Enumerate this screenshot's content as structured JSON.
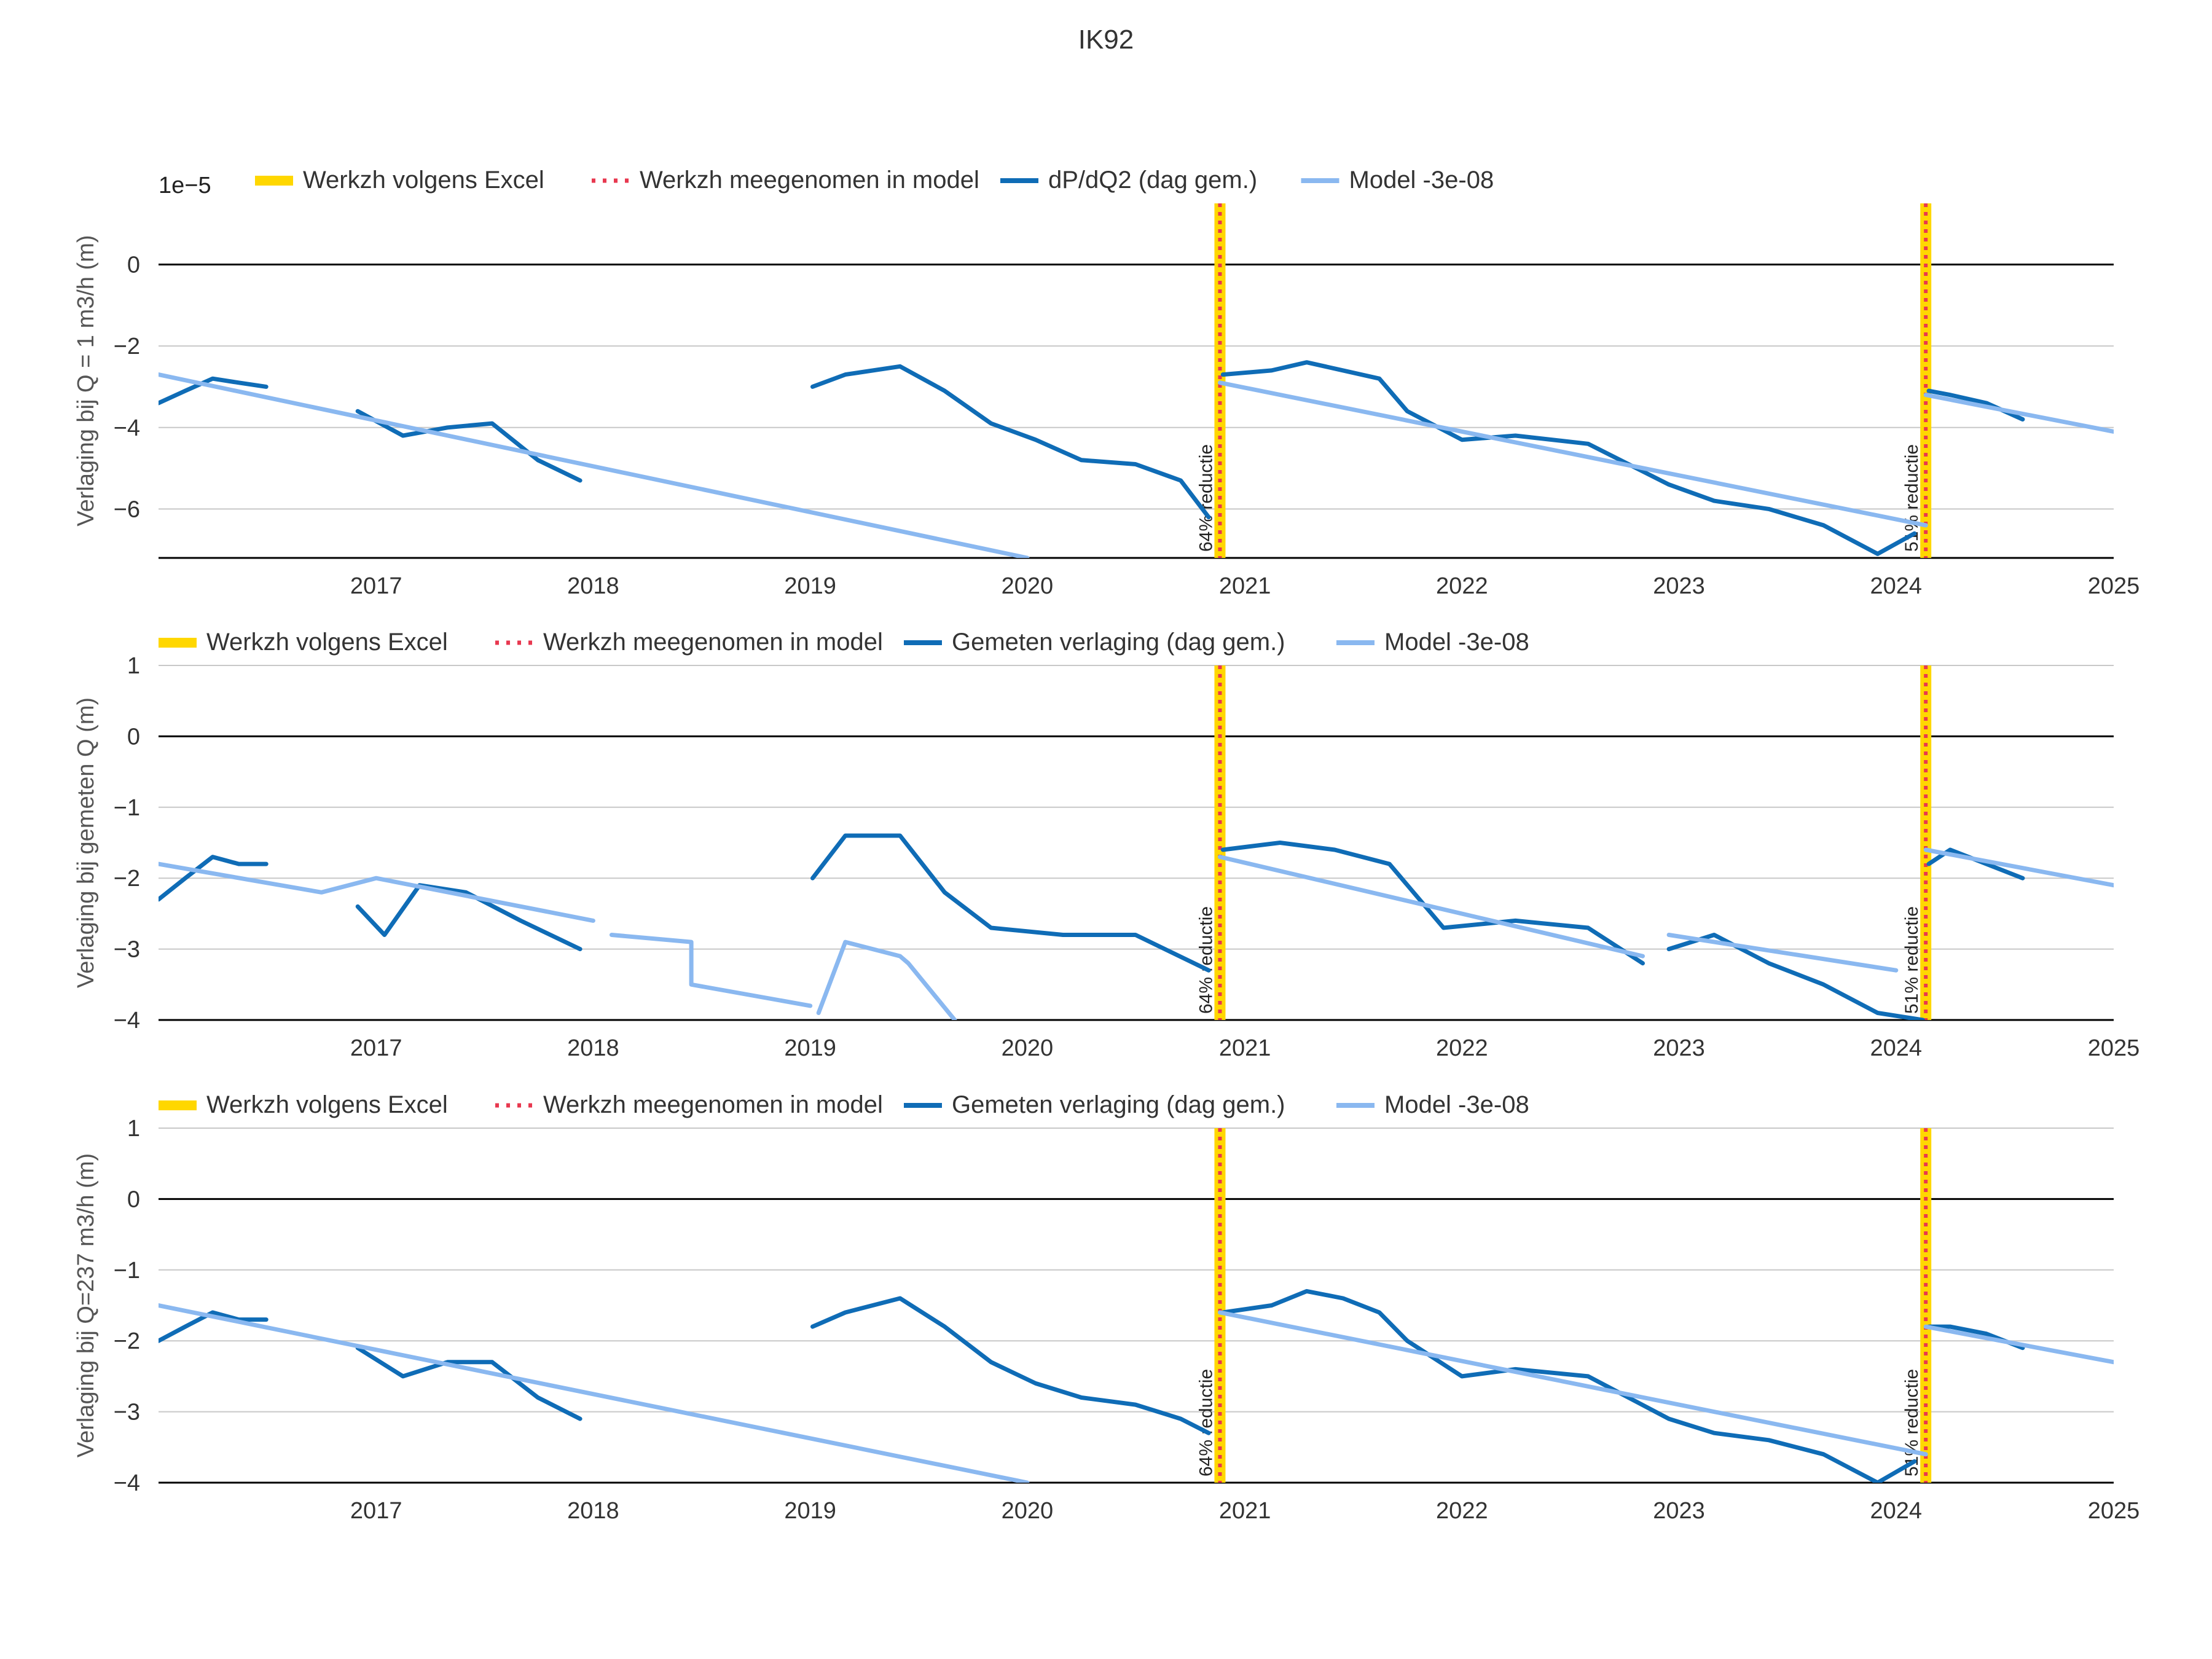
{
  "title": "IK92",
  "colors": {
    "excel": "#FFD700",
    "model_marker": "#E8384F",
    "measured": "#0F6CB6",
    "model": "#8AB8F0",
    "grid": "#C8C8C8",
    "zero": "#000000"
  },
  "chart_data": [
    {
      "type": "line",
      "ylabel": "Verlaging bij Q = 1 m3/h (m)",
      "exponent_label": "1e−5",
      "ylim": [
        -7.2,
        1.5
      ],
      "xlim": [
        "2016-01-01",
        "2025-01-01"
      ],
      "yticks": [
        0,
        -2,
        -4,
        -6
      ],
      "ytick_labels": [
        "0",
        "−2",
        "−4",
        "−6"
      ],
      "xtick_labels": [
        "2017",
        "2018",
        "2019",
        "2020",
        "2021",
        "2022",
        "2023",
        "2024",
        "2025"
      ],
      "grid": true,
      "legend": [
        "Werkzh volgens Excel",
        "Werkzh meegenomen in model",
        "dP/dQ2 (dag gem.)",
        "Model -3e-08"
      ],
      "legend_position": "top",
      "events": [
        {
          "date": "2020-11-20",
          "label": "64% reductie"
        },
        {
          "date": "2024-02-20",
          "label": "51% reductie"
        }
      ],
      "series": [
        {
          "name": "dP/dQ2 (dag gem.)",
          "style": "measured",
          "segments": [
            {
              "x": [
                "2016-01-01",
                "2016-02-15",
                "2016-04-01",
                "2016-05-15",
                "2016-06-30"
              ],
              "y": [
                -3.4,
                -3.1,
                -2.8,
                -2.9,
                -3.0
              ]
            },
            {
              "x": [
                "2016-12-01",
                "2017-02-15",
                "2017-05-01",
                "2017-07-15",
                "2017-09-30",
                "2017-12-10"
              ],
              "y": [
                -3.6,
                -4.2,
                -4.0,
                -3.9,
                -4.8,
                -5.3
              ]
            },
            {
              "x": [
                "2019-01-05",
                "2019-03-01",
                "2019-06-01",
                "2019-08-15",
                "2019-11-01",
                "2020-01-15",
                "2020-04-01",
                "2020-07-01",
                "2020-09-15",
                "2020-11-01"
              ],
              "y": [
                -3.0,
                -2.7,
                -2.5,
                -3.1,
                -3.9,
                -4.3,
                -4.8,
                -4.9,
                -5.3,
                -6.2
              ]
            },
            {
              "x": [
                "2020-11-25",
                "2021-02-15",
                "2021-04-15",
                "2021-06-15",
                "2021-08-15",
                "2021-10-01",
                "2022-01-01",
                "2022-04-01",
                "2022-08-01",
                "2022-12-15",
                "2023-03-01",
                "2023-06-01",
                "2023-09-01",
                "2023-12-01",
                "2024-02-01"
              ],
              "y": [
                -2.7,
                -2.6,
                -2.4,
                -2.6,
                -2.8,
                -3.6,
                -4.3,
                -4.2,
                -4.4,
                -5.4,
                -5.8,
                -6.0,
                -6.4,
                -7.1,
                -6.6
              ]
            },
            {
              "x": [
                "2024-02-25",
                "2024-04-01",
                "2024-06-01",
                "2024-08-01"
              ],
              "y": [
                -3.1,
                -3.2,
                -3.4,
                -3.8
              ]
            }
          ]
        },
        {
          "name": "Model -3e-08",
          "style": "model",
          "segments": [
            {
              "x": [
                "2016-01-01",
                "2020-01-01"
              ],
              "y": [
                -2.7,
                -7.2
              ]
            },
            {
              "x": [
                "2020-11-20",
                "2024-02-20"
              ],
              "y": [
                -2.9,
                -6.4
              ]
            },
            {
              "x": [
                "2024-02-20",
                "2025-01-01"
              ],
              "y": [
                -3.2,
                -4.1
              ]
            }
          ]
        }
      ]
    },
    {
      "type": "line",
      "ylabel": "Verlaging bij gemeten Q (m)",
      "ylim": [
        -4,
        1
      ],
      "xlim": [
        "2016-01-01",
        "2025-01-01"
      ],
      "yticks": [
        1,
        0,
        -1,
        -2,
        -3,
        -4
      ],
      "ytick_labels": [
        "1",
        "0",
        "−1",
        "−2",
        "−3",
        "−4"
      ],
      "xtick_labels": [
        "2017",
        "2018",
        "2019",
        "2020",
        "2021",
        "2022",
        "2023",
        "2024",
        "2025"
      ],
      "grid": true,
      "legend": [
        "Werkzh volgens Excel",
        "Werkzh meegenomen in model",
        "Gemeten verlaging (dag gem.)",
        "Model -3e-08"
      ],
      "legend_position": "top",
      "events": [
        {
          "date": "2020-11-20",
          "label": "64% reductie"
        },
        {
          "date": "2024-02-20",
          "label": "51% reductie"
        }
      ],
      "series": [
        {
          "name": "Gemeten verlaging (dag gem.)",
          "style": "measured",
          "segments": [
            {
              "x": [
                "2016-01-01",
                "2016-02-15",
                "2016-04-01",
                "2016-05-15",
                "2016-06-30"
              ],
              "y": [
                -2.3,
                -2.0,
                -1.7,
                -1.8,
                -1.8
              ]
            },
            {
              "x": [
                "2016-12-01",
                "2017-01-15",
                "2017-03-15",
                "2017-06-01",
                "2017-09-01",
                "2017-12-10"
              ],
              "y": [
                -2.4,
                -2.8,
                -2.1,
                -2.2,
                -2.6,
                -3.0
              ]
            },
            {
              "x": [
                "2019-01-05",
                "2019-03-01",
                "2019-06-01",
                "2019-08-15",
                "2019-11-01",
                "2020-03-01",
                "2020-07-01",
                "2020-11-01"
              ],
              "y": [
                -2.0,
                -1.4,
                -1.4,
                -2.2,
                -2.7,
                -2.8,
                -2.8,
                -3.3
              ]
            },
            {
              "x": [
                "2020-11-25",
                "2021-03-01",
                "2021-06-01",
                "2021-09-01",
                "2021-12-01",
                "2022-04-01",
                "2022-08-01",
                "2022-11-01"
              ],
              "y": [
                -1.6,
                -1.5,
                -1.6,
                -1.8,
                -2.7,
                -2.6,
                -2.7,
                -3.2
              ]
            },
            {
              "x": [
                "2022-12-15",
                "2023-03-01",
                "2023-06-01",
                "2023-09-01",
                "2023-12-01",
                "2024-02-15"
              ],
              "y": [
                -3.0,
                -2.8,
                -3.2,
                -3.5,
                -3.9,
                -4.0
              ]
            },
            {
              "x": [
                "2024-02-25",
                "2024-04-01",
                "2024-06-01",
                "2024-08-01"
              ],
              "y": [
                -1.8,
                -1.6,
                -1.8,
                -2.0
              ]
            }
          ]
        },
        {
          "name": "Model -3e-08",
          "style": "model",
          "segments": [
            {
              "x": [
                "2016-01-01",
                "2016-10-01",
                "2017-01-01",
                "2018-01-01"
              ],
              "y": [
                -1.8,
                -2.2,
                -2.0,
                -2.6
              ]
            },
            {
              "x": [
                "2018-02-01",
                "2018-06-15",
                "2018-06-15",
                "2019-01-01"
              ],
              "y": [
                -2.8,
                -2.9,
                -3.5,
                -3.8
              ]
            },
            {
              "x": [
                "2019-01-15",
                "2019-03-01",
                "2019-06-01",
                "2019-06-15",
                "2019-09-01"
              ],
              "y": [
                -3.9,
                -2.9,
                -3.1,
                -3.2,
                -4.0
              ]
            },
            {
              "x": [
                "2020-11-20",
                "2022-11-01"
              ],
              "y": [
                -1.7,
                -3.1
              ]
            },
            {
              "x": [
                "2022-12-15",
                "2024-01-01"
              ],
              "y": [
                -2.8,
                -3.3
              ]
            },
            {
              "x": [
                "2024-02-20",
                "2025-01-01"
              ],
              "y": [
                -1.6,
                -2.1
              ]
            }
          ]
        }
      ]
    },
    {
      "type": "line",
      "ylabel": "Verlaging bij Q=237 m3/h (m)",
      "ylim": [
        -4,
        1
      ],
      "xlim": [
        "2016-01-01",
        "2025-01-01"
      ],
      "yticks": [
        1,
        0,
        -1,
        -2,
        -3,
        -4
      ],
      "ytick_labels": [
        "1",
        "0",
        "−1",
        "−2",
        "−3",
        "−4"
      ],
      "xtick_labels": [
        "2017",
        "2018",
        "2019",
        "2020",
        "2021",
        "2022",
        "2023",
        "2024",
        "2025"
      ],
      "grid": true,
      "legend": [
        "Werkzh volgens Excel",
        "Werkzh meegenomen in model",
        "Gemeten verlaging (dag gem.)",
        "Model -3e-08"
      ],
      "legend_position": "top",
      "events": [
        {
          "date": "2020-11-20",
          "label": "64% reductie"
        },
        {
          "date": "2024-02-20",
          "label": "51% reductie"
        }
      ],
      "series": [
        {
          "name": "Gemeten verlaging (dag gem.)",
          "style": "measured",
          "segments": [
            {
              "x": [
                "2016-01-01",
                "2016-02-15",
                "2016-04-01",
                "2016-05-15",
                "2016-06-30"
              ],
              "y": [
                -2.0,
                -1.8,
                -1.6,
                -1.7,
                -1.7
              ]
            },
            {
              "x": [
                "2016-12-01",
                "2017-02-15",
                "2017-05-01",
                "2017-07-15",
                "2017-09-30",
                "2017-12-10"
              ],
              "y": [
                -2.1,
                -2.5,
                -2.3,
                -2.3,
                -2.8,
                -3.1
              ]
            },
            {
              "x": [
                "2019-01-05",
                "2019-03-01",
                "2019-06-01",
                "2019-08-15",
                "2019-11-01",
                "2020-01-15",
                "2020-04-01",
                "2020-07-01",
                "2020-09-15",
                "2020-11-01"
              ],
              "y": [
                -1.8,
                -1.6,
                -1.4,
                -1.8,
                -2.3,
                -2.6,
                -2.8,
                -2.9,
                -3.1,
                -3.3
              ]
            },
            {
              "x": [
                "2020-11-25",
                "2021-02-15",
                "2021-04-15",
                "2021-06-15",
                "2021-08-15",
                "2021-10-01",
                "2022-01-01",
                "2022-04-01",
                "2022-08-01",
                "2022-12-15",
                "2023-03-01",
                "2023-06-01",
                "2023-09-01",
                "2023-12-01",
                "2024-02-01"
              ],
              "y": [
                -1.6,
                -1.5,
                -1.3,
                -1.4,
                -1.6,
                -2.0,
                -2.5,
                -2.4,
                -2.5,
                -3.1,
                -3.3,
                -3.4,
                -3.6,
                -4.0,
                -3.7
              ]
            },
            {
              "x": [
                "2024-02-25",
                "2024-04-01",
                "2024-06-01",
                "2024-08-01"
              ],
              "y": [
                -1.8,
                -1.8,
                -1.9,
                -2.1
              ]
            }
          ]
        },
        {
          "name": "Model -3e-08",
          "style": "model",
          "segments": [
            {
              "x": [
                "2016-01-01",
                "2020-01-01"
              ],
              "y": [
                -1.5,
                -4.0
              ]
            },
            {
              "x": [
                "2020-11-20",
                "2024-02-20"
              ],
              "y": [
                -1.6,
                -3.6
              ]
            },
            {
              "x": [
                "2024-02-20",
                "2025-01-01"
              ],
              "y": [
                -1.8,
                -2.3
              ]
            }
          ]
        }
      ]
    }
  ]
}
